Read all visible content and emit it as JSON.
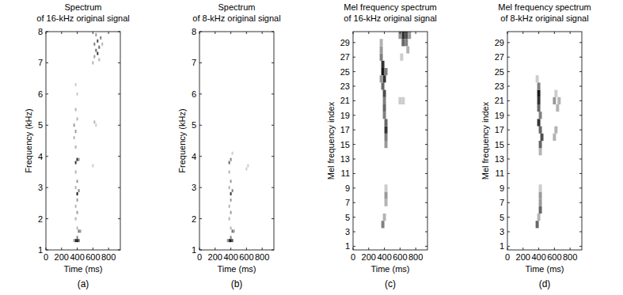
{
  "chart_data": [
    {
      "type": "heatmap",
      "title": "Spectrum of 16-kHz original signal",
      "panel": "(a)",
      "x_label": "Time (ms)",
      "y_label": "Frequency (kHz)",
      "xlim": [
        0,
        950
      ],
      "xticks": [
        0,
        200,
        400,
        600,
        800
      ],
      "ylim": [
        1,
        8
      ],
      "yticks": [
        1,
        2,
        3,
        4,
        5,
        6,
        7,
        8
      ],
      "color": "#000000",
      "x_step": 20,
      "y_step": 0.1,
      "cells": [
        [
          380,
          1.3,
          0.9
        ],
        [
          400,
          1.3,
          1.0
        ],
        [
          420,
          1.3,
          0.7
        ],
        [
          360,
          1.3,
          0.4
        ],
        [
          400,
          1.4,
          0.5
        ],
        [
          420,
          1.6,
          0.6
        ],
        [
          440,
          1.6,
          0.4
        ],
        [
          400,
          1.7,
          0.3
        ],
        [
          380,
          2.0,
          0.3
        ],
        [
          400,
          2.2,
          0.4
        ],
        [
          380,
          2.4,
          0.3
        ],
        [
          400,
          2.6,
          0.4
        ],
        [
          400,
          2.8,
          0.9
        ],
        [
          420,
          2.9,
          0.5
        ],
        [
          380,
          3.0,
          0.3
        ],
        [
          400,
          3.2,
          0.4
        ],
        [
          380,
          3.5,
          0.3
        ],
        [
          380,
          3.8,
          0.8
        ],
        [
          400,
          3.9,
          0.9
        ],
        [
          420,
          3.9,
          0.4
        ],
        [
          380,
          4.3,
          0.3
        ],
        [
          360,
          4.6,
          0.3
        ],
        [
          380,
          4.8,
          0.4
        ],
        [
          360,
          5.0,
          0.4
        ],
        [
          400,
          5.2,
          0.3
        ],
        [
          380,
          5.5,
          0.3
        ],
        [
          400,
          6.0,
          0.2
        ],
        [
          380,
          6.3,
          0.2
        ],
        [
          600,
          3.7,
          0.2
        ],
        [
          620,
          5.1,
          0.3
        ],
        [
          640,
          5.0,
          0.2
        ],
        [
          600,
          7.0,
          0.3
        ],
        [
          620,
          7.2,
          0.4
        ],
        [
          640,
          7.4,
          0.6
        ],
        [
          660,
          7.3,
          0.8
        ],
        [
          680,
          7.5,
          0.6
        ],
        [
          620,
          7.6,
          0.5
        ],
        [
          660,
          7.7,
          0.7
        ],
        [
          700,
          7.8,
          0.5
        ],
        [
          640,
          7.9,
          0.4
        ],
        [
          680,
          7.1,
          0.3
        ],
        [
          720,
          7.6,
          0.3
        ]
      ]
    },
    {
      "type": "heatmap",
      "title": "Spectrum of 8-kHz original signal",
      "panel": "(b)",
      "x_label": "Time (ms)",
      "y_label": "Frequency (kHz)",
      "xlim": [
        0,
        950
      ],
      "xticks": [
        0,
        200,
        400,
        600,
        800
      ],
      "ylim": [
        1,
        8
      ],
      "yticks": [
        1,
        2,
        3,
        4,
        5,
        6,
        7,
        8
      ],
      "color": "#000000",
      "x_step": 20,
      "y_step": 0.1,
      "cells": [
        [
          380,
          1.3,
          0.9
        ],
        [
          400,
          1.3,
          1.0
        ],
        [
          420,
          1.3,
          0.7
        ],
        [
          360,
          1.3,
          0.4
        ],
        [
          400,
          1.4,
          0.5
        ],
        [
          420,
          1.6,
          0.6
        ],
        [
          440,
          1.6,
          0.4
        ],
        [
          400,
          1.7,
          0.3
        ],
        [
          380,
          2.0,
          0.3
        ],
        [
          400,
          2.2,
          0.4
        ],
        [
          380,
          2.4,
          0.3
        ],
        [
          400,
          2.6,
          0.4
        ],
        [
          400,
          2.8,
          0.8
        ],
        [
          420,
          2.9,
          0.5
        ],
        [
          380,
          3.0,
          0.3
        ],
        [
          400,
          3.2,
          0.4
        ],
        [
          380,
          3.5,
          0.3
        ],
        [
          380,
          3.8,
          0.6
        ],
        [
          400,
          3.9,
          0.5
        ],
        [
          420,
          4.1,
          0.2
        ],
        [
          600,
          3.6,
          0.2
        ],
        [
          620,
          3.7,
          0.2
        ]
      ]
    },
    {
      "type": "heatmap",
      "title": "Mel frequency spectrum of 16-kHz original signal",
      "panel": "(c)",
      "x_label": "Time (ms)",
      "y_label": "Mel frequency index",
      "xlim": [
        0,
        950
      ],
      "xticks": [
        0,
        200,
        400,
        600,
        800
      ],
      "ylim": [
        0.5,
        30.5
      ],
      "yticks": [
        1,
        3,
        5,
        7,
        9,
        11,
        13,
        15,
        17,
        19,
        21,
        23,
        25,
        27,
        29
      ],
      "color": "#000000",
      "x_step": 40,
      "y_step": 1,
      "cells": [
        [
          380,
          4,
          0.5
        ],
        [
          400,
          5,
          0.3
        ],
        [
          420,
          7,
          0.3
        ],
        [
          420,
          8,
          0.4
        ],
        [
          420,
          9,
          0.2
        ],
        [
          420,
          15,
          0.4
        ],
        [
          420,
          16,
          0.5
        ],
        [
          420,
          17,
          0.8
        ],
        [
          420,
          18,
          0.6
        ],
        [
          400,
          19,
          0.5
        ],
        [
          400,
          20,
          0.6
        ],
        [
          400,
          21,
          0.5
        ],
        [
          400,
          22,
          0.7
        ],
        [
          380,
          23,
          0.6
        ],
        [
          400,
          24,
          0.8
        ],
        [
          380,
          25,
          0.9
        ],
        [
          380,
          26,
          0.8
        ],
        [
          360,
          27,
          0.5
        ],
        [
          360,
          28,
          0.4
        ],
        [
          360,
          29,
          0.3
        ],
        [
          420,
          25,
          0.5
        ],
        [
          360,
          24,
          0.4
        ],
        [
          600,
          21,
          0.2
        ],
        [
          640,
          21,
          0.2
        ],
        [
          620,
          27,
          0.2
        ],
        [
          640,
          29,
          0.6
        ],
        [
          640,
          30,
          0.8
        ],
        [
          680,
          30,
          0.7
        ],
        [
          680,
          29,
          0.5
        ],
        [
          600,
          30,
          0.4
        ],
        [
          700,
          28,
          0.3
        ],
        [
          720,
          30,
          0.4
        ]
      ]
    },
    {
      "type": "heatmap",
      "title": "Mel frequency spectrum of 8-kHz original signal",
      "panel": "(d)",
      "x_label": "Time (ms)",
      "y_label": "Mel frequency index",
      "xlim": [
        0,
        950
      ],
      "xticks": [
        0,
        200,
        400,
        600,
        800
      ],
      "ylim": [
        0.5,
        30.5
      ],
      "yticks": [
        1,
        3,
        5,
        7,
        9,
        11,
        13,
        15,
        17,
        19,
        21,
        23,
        25,
        27,
        29
      ],
      "color": "#000000",
      "x_step": 40,
      "y_step": 1,
      "cells": [
        [
          380,
          4,
          0.6
        ],
        [
          400,
          5,
          0.3
        ],
        [
          420,
          6,
          0.6
        ],
        [
          420,
          7,
          0.4
        ],
        [
          420,
          8,
          0.4
        ],
        [
          420,
          9,
          0.2
        ],
        [
          420,
          14,
          0.3
        ],
        [
          420,
          15,
          0.6
        ],
        [
          440,
          16,
          0.7
        ],
        [
          420,
          17,
          0.6
        ],
        [
          400,
          18,
          0.8
        ],
        [
          420,
          19,
          0.5
        ],
        [
          400,
          20,
          0.6
        ],
        [
          400,
          21,
          0.8
        ],
        [
          400,
          22,
          0.9
        ],
        [
          400,
          23,
          0.5
        ],
        [
          380,
          24,
          0.2
        ],
        [
          600,
          16,
          0.3
        ],
        [
          620,
          17,
          0.3
        ],
        [
          640,
          20,
          0.3
        ],
        [
          600,
          21,
          0.4
        ],
        [
          660,
          21,
          0.3
        ],
        [
          620,
          22,
          0.2
        ]
      ]
    }
  ]
}
